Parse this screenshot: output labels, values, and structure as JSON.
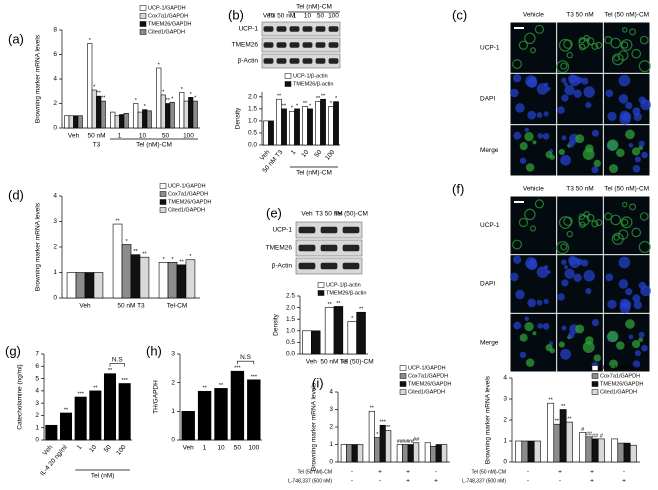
{
  "chart_data": [
    {
      "panel": "(a)",
      "type": "bar",
      "ylabel": "Browning marker mRNA levels",
      "categories": [
        "Veh",
        "50 nM",
        "1",
        "10",
        "50",
        "100"
      ],
      "x_groups": [
        {
          "label": "T3",
          "span": [
            1,
            1
          ]
        },
        {
          "label": "Tel (nM)-CM",
          "span": [
            2,
            5
          ]
        }
      ],
      "ylim": [
        0,
        8
      ],
      "yticks": [
        0,
        2,
        4,
        6,
        8
      ],
      "legend": "upper right",
      "series": [
        {
          "name": "UCP-1/GAPDH",
          "color": "#ffffff",
          "values": [
            1,
            6.9,
            1.3,
            2.0,
            4.9,
            2.9
          ],
          "significance": [
            null,
            "*",
            null,
            "*",
            "*",
            "*"
          ]
        },
        {
          "name": "Cox7a1/GAPDH",
          "color": "#d9d9d9",
          "values": [
            1,
            3.1,
            1.0,
            1.3,
            2.7,
            2.2
          ],
          "significance": [
            null,
            "*",
            null,
            null,
            "*",
            null
          ]
        },
        {
          "name": "TMEM26/GAPDH",
          "color": "#111111",
          "values": [
            1,
            2.6,
            1.1,
            1.5,
            2.0,
            2.5
          ],
          "significance": [
            null,
            "**",
            null,
            "*",
            "**",
            "*"
          ]
        },
        {
          "name": "Cited1/GAPDH",
          "color": "#8c8c8c",
          "values": [
            1,
            2.2,
            1.2,
            1.4,
            2.1,
            2.2
          ],
          "significance": [
            null,
            "**",
            null,
            null,
            "*",
            "*"
          ]
        }
      ]
    },
    {
      "panel": "(b)",
      "type": "bar",
      "ylabel": "Density",
      "blot": {
        "lanes": [
          "Veh",
          "T3 50 nM",
          "1",
          "10",
          "50",
          "100"
        ],
        "lane_group": "Tel (nM)-CM",
        "bands": [
          "UCP-1",
          "TMEM26",
          "β-Actin"
        ]
      },
      "categories": [
        "Veh",
        "50 nM T3",
        "1",
        "10",
        "50",
        "100"
      ],
      "x_groups": [
        {
          "label": "Tel (nM)-CM",
          "span": [
            2,
            5
          ]
        }
      ],
      "ylim": [
        0,
        2.2
      ],
      "yticks": [
        {
          "value": 0,
          "label": "0.0"
        },
        0.5,
        {
          "value": 1,
          "label": "1.0"
        },
        1.5,
        {
          "value": 2,
          "label": "2.0"
        }
      ],
      "legend": "upper right",
      "series": [
        {
          "name": "UCP-1/β-actin",
          "color": "#ffffff",
          "values": [
            1.0,
            1.9,
            1.4,
            1.6,
            1.8,
            1.6
          ],
          "significance": [
            null,
            "**",
            "*",
            "**",
            "**",
            "*"
          ]
        },
        {
          "name": "TMEM26/β-actin",
          "color": "#111111",
          "values": [
            1.0,
            1.5,
            1.5,
            1.5,
            1.9,
            1.8
          ],
          "significance": [
            null,
            "**",
            "*",
            "*",
            "**",
            "*"
          ]
        }
      ]
    },
    {
      "panel": "(c)",
      "type": "image_grid",
      "columns": [
        "Vehicle",
        "T3 50 nM",
        "Tel (50 nM)-CM"
      ],
      "rows": [
        "UCP-1",
        "DAPI",
        "Merge"
      ]
    },
    {
      "panel": "(d)",
      "type": "bar",
      "ylabel": "Browning marker mRNA levels",
      "categories": [
        "Veh",
        "50 nM T3",
        "Tel-CM"
      ],
      "ylim": [
        0,
        4
      ],
      "yticks": [
        0,
        1,
        2,
        3,
        4
      ],
      "legend": "upper right",
      "series": [
        {
          "name": "UCP-1/GAPDH",
          "color": "#ffffff",
          "values": [
            1,
            2.9,
            1.4
          ],
          "significance": [
            null,
            "**",
            "*"
          ]
        },
        {
          "name": "Cox7a1/GAPDH",
          "color": "#8c8c8c",
          "values": [
            1,
            2.1,
            1.4
          ],
          "significance": [
            null,
            "*",
            "*"
          ]
        },
        {
          "name": "TMEM26/GAPDH",
          "color": "#111111",
          "values": [
            1,
            1.7,
            1.3
          ],
          "significance": [
            null,
            "**",
            "**"
          ]
        },
        {
          "name": "Cited1/GAPDH",
          "color": "#d9d9d9",
          "values": [
            1,
            1.6,
            1.5
          ],
          "significance": [
            null,
            "**",
            "*"
          ]
        }
      ]
    },
    {
      "panel": "(e)",
      "type": "bar",
      "ylabel": "Density",
      "blot": {
        "lanes": [
          "Veh",
          "T3 50 nM",
          "Tel (50)-CM"
        ],
        "bands": [
          "UCP-1",
          "TMEM26",
          "β-Actin"
        ]
      },
      "categories": [
        "Veh",
        "50 nM T3",
        "Tel (50)-CM"
      ],
      "ylim": [
        0,
        2.5
      ],
      "yticks": [
        {
          "value": 0,
          "label": "0.0"
        },
        0.5,
        {
          "value": 1,
          "label": "1.0"
        },
        1.5,
        {
          "value": 2,
          "label": "2.0"
        },
        2.5
      ],
      "legend": "upper right",
      "series": [
        {
          "name": "UCP-1/β-actin",
          "color": "#ffffff",
          "values": [
            1.0,
            2.0,
            1.4
          ],
          "significance": [
            null,
            "**",
            "*"
          ]
        },
        {
          "name": "TMEM26/β-actin",
          "color": "#111111",
          "values": [
            1.0,
            2.05,
            1.8
          ],
          "significance": [
            null,
            "**",
            "**"
          ]
        }
      ]
    },
    {
      "panel": "(f)",
      "type": "image_grid",
      "columns": [
        "Vehicle",
        "T3 50 nM",
        "Tel (50 nM)-CM"
      ],
      "rows": [
        "UCP-1",
        "DAPI",
        "Merge"
      ]
    },
    {
      "panel": "(g)",
      "type": "bar",
      "ylabel": "Catecholamine (ng/ml)",
      "categories": [
        "Veh",
        "IL-4 20 ng/ml",
        "1",
        "10",
        "50",
        "100"
      ],
      "x_groups": [
        {
          "label": "Tel (nM)",
          "span": [
            2,
            5
          ]
        }
      ],
      "values": [
        1.2,
        2.2,
        3.5,
        4.0,
        5.4,
        4.6
      ],
      "color": "#000000",
      "significance": [
        null,
        "**",
        "***",
        "**",
        "**",
        "***"
      ],
      "annotations": [
        {
          "text": "N.S",
          "span": [
            4,
            5
          ]
        }
      ],
      "ylim": [
        0,
        7
      ],
      "yticks": [
        0,
        1,
        2,
        3,
        4,
        5,
        6,
        7
      ]
    },
    {
      "panel": "(h)",
      "type": "bar",
      "ylabel": "TH/GAPDH",
      "categories": [
        "Veh",
        "1",
        "10",
        "50",
        "100"
      ],
      "values": [
        1.0,
        1.7,
        1.8,
        2.4,
        2.1
      ],
      "color": "#000000",
      "significance": [
        null,
        "**",
        "**",
        "***",
        "***"
      ],
      "annotations": [
        {
          "text": "N.S",
          "span": [
            3,
            4
          ]
        }
      ],
      "ylim": [
        0,
        3
      ],
      "yticks": [
        0,
        1,
        2,
        3
      ]
    },
    {
      "panel": "(i)",
      "type": "bar",
      "ylabel": "Browning marker mRNA levels",
      "conditions": [
        {
          "label": "Tel (50 nM)-CM",
          "values": [
            "-",
            "+",
            "+",
            "-"
          ]
        },
        {
          "label": "L-748,337 (500 nM)",
          "values": [
            "-",
            "-",
            "+",
            "+"
          ]
        }
      ],
      "ylim": [
        0,
        4
      ],
      "yticks": [
        0,
        1,
        2,
        3,
        4
      ],
      "legend": "upper right",
      "series": [
        {
          "name": "UCP-1/GAPDH",
          "color": "#ffffff",
          "values": [
            1,
            2.9,
            1.0,
            1.1
          ],
          "significance": [
            null,
            "**",
            "##",
            null
          ]
        },
        {
          "name": "Cox7a1/GAPDH",
          "color": "#8c8c8c",
          "values": [
            1,
            1.4,
            1.0,
            0.9
          ],
          "significance": [
            null,
            "*",
            "##",
            null
          ]
        },
        {
          "name": "TMEM26/GAPDH",
          "color": "#111111",
          "values": [
            1,
            2.1,
            1.0,
            1.0
          ],
          "significance": [
            null,
            "***",
            "##",
            null
          ]
        },
        {
          "name": "Cited1/GAPDH",
          "color": "#d9d9d9",
          "values": [
            1,
            1.8,
            1.1,
            1.0
          ],
          "significance": [
            null,
            "**",
            "##",
            null
          ]
        }
      ]
    },
    {
      "type": "bar",
      "ylabel": "Browning marker mRNA levels",
      "conditions": [
        {
          "label": "Tel (50 nM)-CM",
          "values": [
            "-",
            "+",
            "+",
            "-"
          ]
        },
        {
          "label": "L-748,337 (500 nM)",
          "values": [
            "-",
            "-",
            "+",
            "+"
          ]
        }
      ],
      "ylim": [
        0,
        4
      ],
      "yticks": [
        0,
        1,
        2,
        3,
        4
      ],
      "legend": "upper right",
      "series": [
        {
          "name": "UCP-1/GAPDH",
          "color": "#ffffff",
          "values": [
            1,
            2.8,
            1.4,
            1.1
          ],
          "significance": [
            null,
            "**",
            "#",
            null
          ]
        },
        {
          "name": "Cox7a1/GAPDH",
          "color": "#8c8c8c",
          "values": [
            1,
            1.8,
            1.2,
            0.9
          ],
          "significance": [
            null,
            "**",
            "##",
            null
          ]
        },
        {
          "name": "TMEM26/GAPDH",
          "color": "#111111",
          "values": [
            1,
            2.5,
            1.1,
            0.9
          ],
          "significance": [
            null,
            "**",
            "##",
            null
          ]
        },
        {
          "name": "Cited1/GAPDH",
          "color": "#d9d9d9",
          "values": [
            1,
            1.9,
            1.1,
            0.8
          ],
          "significance": [
            null,
            "**",
            "#",
            null
          ]
        }
      ]
    }
  ]
}
